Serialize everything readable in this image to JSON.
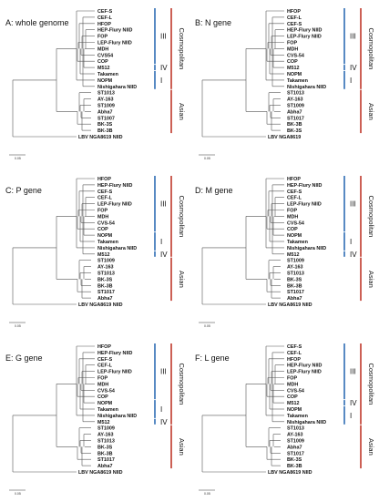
{
  "figure": {
    "panels": [
      {
        "id": "A",
        "title": "A: whole genome",
        "leaves": [
          "CEF-S",
          "CEF-L",
          "HFOP",
          "HEP-Flury NIID",
          "FOP",
          "LEP-Flury NIID",
          "MDH",
          "CVS54",
          "COP",
          "M512",
          "Takamen",
          "NOPM",
          "Nishigahara NIID",
          "ST1013",
          "AY-163",
          "ST1009",
          "Abha7",
          "ST1007",
          "BK-3S",
          "BK-3B",
          "LBV NGA8619 NIID"
        ],
        "clades": [
          {
            "label": "III",
            "from": 0,
            "to": 8
          },
          {
            "label": "IV",
            "from": 9,
            "to": 9
          },
          {
            "label": "I",
            "from": 10,
            "to": 12
          }
        ],
        "groups": [
          {
            "label": "Cosmopolitan",
            "from": 0,
            "to": 12,
            "color": "#c0392b"
          },
          {
            "label": "Asian",
            "from": 13,
            "to": 19,
            "color": "#c0392b"
          }
        ],
        "scale_label": "0.05"
      },
      {
        "id": "B",
        "title": "B: N gene",
        "leaves": [
          "HFOP",
          "CEF-L",
          "CEF-S",
          "HEP-Flury NIID",
          "LEP-Flury NIID",
          "FOP",
          "MDH",
          "CVS-54",
          "COP",
          "M512",
          "NOPM",
          "Takamen",
          "Nishigahara NIID",
          "ST1013",
          "AY-163",
          "ST1009",
          "Abha7",
          "ST1017",
          "BK-3B",
          "BK-3S",
          "LBV NGA8619"
        ],
        "clades": [
          {
            "label": "III",
            "from": 0,
            "to": 8
          },
          {
            "label": "IV",
            "from": 9,
            "to": 9
          },
          {
            "label": "I",
            "from": 10,
            "to": 12
          }
        ],
        "groups": [
          {
            "label": "Cosmopolitan",
            "from": 0,
            "to": 12,
            "color": "#c0392b"
          },
          {
            "label": "Asian",
            "from": 13,
            "to": 19,
            "color": "#c0392b"
          }
        ],
        "scale_label": "0.05"
      },
      {
        "id": "C",
        "title": "C: P gene",
        "leaves": [
          "HFOP",
          "HEP-Flury NIID",
          "CEF-S",
          "CEF-L",
          "LEP-Flury NIID",
          "FOP",
          "MDH",
          "CVS-54",
          "COP",
          "NOPM",
          "Takamen",
          "Nishigahara NIID",
          "M512",
          "ST1009",
          "AY-163",
          "ST1013",
          "BK-3S",
          "BK-3B",
          "ST1017",
          "Abha7",
          "LBV NGA8619 NIID"
        ],
        "clades": [
          {
            "label": "III",
            "from": 0,
            "to": 8
          },
          {
            "label": "I",
            "from": 9,
            "to": 11
          },
          {
            "label": "IV",
            "from": 12,
            "to": 12
          }
        ],
        "groups": [
          {
            "label": "Cosmopolitan",
            "from": 0,
            "to": 12,
            "color": "#c0392b"
          },
          {
            "label": "Asian",
            "from": 13,
            "to": 19,
            "color": "#c0392b"
          }
        ],
        "scale_label": "0.05"
      },
      {
        "id": "D",
        "title": "D: M gene",
        "leaves": [
          "HFOP",
          "HEP-Flury NIID",
          "CEF-S",
          "CEF-L",
          "LEP-Flury NIID",
          "FOP",
          "MDH",
          "CVS-54",
          "COP",
          "NOPM",
          "Takamen",
          "Nishigahara NIID",
          "M512",
          "ST1009",
          "AY-163",
          "ST1013",
          "BK-3S",
          "BK-3B",
          "ST1017",
          "Abha7",
          "LBV NGA8619 NIID"
        ],
        "clades": [
          {
            "label": "III",
            "from": 0,
            "to": 8
          },
          {
            "label": "I",
            "from": 9,
            "to": 11
          },
          {
            "label": "IV",
            "from": 12,
            "to": 12
          }
        ],
        "groups": [
          {
            "label": "Cosmopolitan",
            "from": 0,
            "to": 12,
            "color": "#c0392b"
          },
          {
            "label": "Asian",
            "from": 13,
            "to": 19,
            "color": "#c0392b"
          }
        ],
        "scale_label": "0.05"
      },
      {
        "id": "E",
        "title": "E: G gene",
        "leaves": [
          "HFOP",
          "HEP-Flury NIID",
          "CEF-S",
          "CEF-L",
          "LEP-Flury NIID",
          "FOP",
          "MDH",
          "CVS-54",
          "COP",
          "NOPM",
          "Takamen",
          "Nishigahara NIID",
          "M512",
          "ST1009",
          "AY-163",
          "ST1013",
          "BK-3S",
          "BK-3B",
          "ST1017",
          "Abha7",
          "LBV NGA8619 NIID"
        ],
        "clades": [
          {
            "label": "III",
            "from": 0,
            "to": 8
          },
          {
            "label": "I",
            "from": 9,
            "to": 11
          },
          {
            "label": "IV",
            "from": 12,
            "to": 12
          }
        ],
        "groups": [
          {
            "label": "Cosmopolitan",
            "from": 0,
            "to": 12,
            "color": "#c0392b"
          },
          {
            "label": "Asian",
            "from": 13,
            "to": 19,
            "color": "#c0392b"
          }
        ],
        "scale_label": "0.05"
      },
      {
        "id": "F",
        "title": "F: L gene",
        "leaves": [
          "CEF-S",
          "CEF-L",
          "HFOP",
          "HEP-Flury NIID",
          "LEP-Flury NIID",
          "FOP",
          "MDH",
          "CVS-54",
          "COP",
          "M512",
          "NOPM",
          "Takamen",
          "Nishigahara NIID",
          "ST1013",
          "AY-163",
          "ST1009",
          "Abha7",
          "ST1017",
          "BK-3S",
          "BK-3B",
          "LBV NGA8619 NIID"
        ],
        "clades": [
          {
            "label": "III",
            "from": 0,
            "to": 8
          },
          {
            "label": "IV",
            "from": 9,
            "to": 9
          },
          {
            "label": "I",
            "from": 10,
            "to": 12
          }
        ],
        "groups": [
          {
            "label": "Cosmopolitan",
            "from": 0,
            "to": 12,
            "color": "#c0392b"
          },
          {
            "label": "Asian",
            "from": 13,
            "to": 19,
            "color": "#c0392b"
          }
        ],
        "scale_label": "0.05"
      }
    ],
    "colors": {
      "clade_bar": "#2e6db4",
      "group_bar": "#c0392b",
      "branch": "#555555"
    }
  }
}
